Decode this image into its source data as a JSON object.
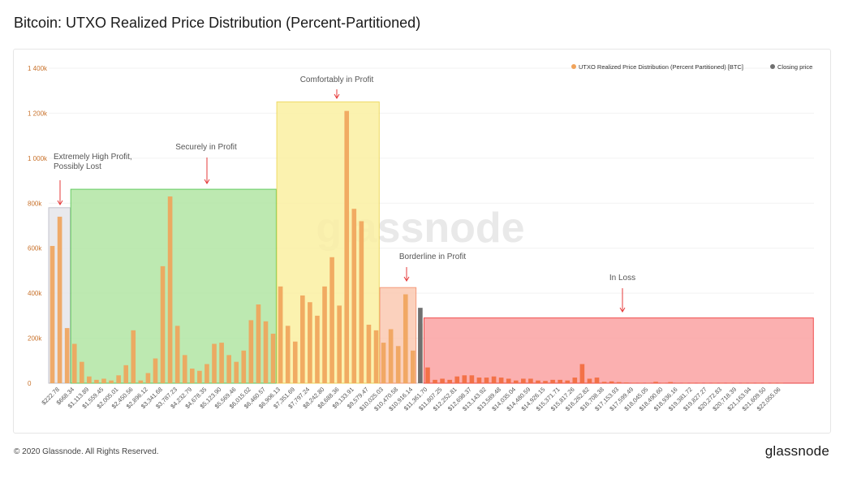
{
  "title": "Bitcoin: UTXO Realized Price Distribution (Percent-Partitioned)",
  "footer": {
    "copyright": "© 2020 Glassnode. All Rights Reserved.",
    "brand": "glassnode"
  },
  "watermark": "glassnode",
  "legend": [
    {
      "label": "UTXO Realized Price Distribution (Percent Partitioned) [BTC]",
      "color": "#f0a35a"
    },
    {
      "label": "Closing price",
      "color": "#707070"
    }
  ],
  "colors": {
    "bar": "#f0a35a",
    "bar_loss": "#f26a3c",
    "closing": "#707070"
  },
  "zones": [
    {
      "id": "extreme",
      "label_lines": [
        "Extremely High Profit,",
        "Possibly Lost"
      ],
      "fill": "#e6e6ea",
      "stroke": "#b9b9c4"
    },
    {
      "id": "secure",
      "label_lines": [
        "Securely in Profit"
      ],
      "fill": "#b2e6a4",
      "stroke": "#4cc24a"
    },
    {
      "id": "comfort",
      "label_lines": [
        "Comfortably in Profit"
      ],
      "fill": "#fbf0a2",
      "stroke": "#ecd44a"
    },
    {
      "id": "border",
      "label_lines": [
        "Borderline in Profit"
      ],
      "fill": "#fbc9b2",
      "stroke": "#f28a66"
    },
    {
      "id": "loss",
      "label_lines": [
        "In Loss"
      ],
      "fill": "#fba3a3",
      "stroke": "#ee2c2c"
    }
  ],
  "chart_data": {
    "type": "bar",
    "title": "",
    "xlabel": "",
    "ylabel": "",
    "ylim": [
      0,
      1400000
    ],
    "yticks": [
      0,
      200000,
      400000,
      600000,
      800000,
      1000000,
      1200000,
      1400000
    ],
    "ytick_labels": [
      "0",
      "200k",
      "400k",
      "600k",
      "800k",
      "1 000k",
      "1 200k",
      "1 400k"
    ],
    "x_tick_labels": [
      "$222.78",
      "$668.34",
      "$1,113.89",
      "$1,559.45",
      "$2,005.01",
      "$2,450.56",
      "$2,896.12",
      "$3,341.68",
      "$3,787.23",
      "$4,232.79",
      "$4,678.35",
      "$5,123.90",
      "$5,569.46",
      "$6,015.02",
      "$6,460.57",
      "$6,906.13",
      "$7,351.69",
      "$7,797.24",
      "$8,242.80",
      "$8,688.36",
      "$9,133.91",
      "$9,579.47",
      "$10,025.03",
      "$10,470.58",
      "$10,916.14",
      "$11,361.70",
      "$11,807.25",
      "$12,252.81",
      "$12,698.37",
      "$13,143.92",
      "$13,589.48",
      "$14,035.04",
      "$14,480.59",
      "$14,926.15",
      "$15,371.71",
      "$15,817.26",
      "$16,262.82",
      "$16,708.38",
      "$17,153.93",
      "$17,599.49",
      "$18,045.05",
      "$18,490.60",
      "$18,936.16",
      "$19,381.72",
      "$19,827.27",
      "$20,272.83",
      "$20,718.39",
      "$21,163.94",
      "$21,609.50",
      "$22,055.06"
    ],
    "closing_price_label": "$11,361.70",
    "series": [
      {
        "name": "UTXO Realized Price Distribution (Percent Partitioned) [BTC]",
        "values": [
          610000,
          740000,
          245000,
          175000,
          95000,
          30000,
          15000,
          20000,
          12000,
          35000,
          80000,
          235000,
          12000,
          45000,
          110000,
          520000,
          830000,
          255000,
          125000,
          65000,
          55000,
          85000,
          175000,
          180000,
          125000,
          95000,
          145000,
          280000,
          350000,
          275000,
          220000,
          430000,
          255000,
          185000,
          390000,
          360000,
          300000,
          430000,
          560000,
          345000,
          1210000,
          775000,
          720000,
          260000,
          235000,
          180000,
          240000,
          165000,
          395000,
          145000,
          265000,
          70000,
          15000,
          20000,
          15000,
          30000,
          35000,
          35000,
          25000,
          25000,
          30000,
          25000,
          20000,
          12000,
          20000,
          20000,
          12000,
          10000,
          15000,
          15000,
          12000,
          25000,
          85000,
          20000,
          25000,
          6000,
          8000,
          5000,
          3000,
          2000,
          2000,
          1000,
          6000,
          1000,
          5000,
          2000,
          1000,
          1000,
          1000,
          1000,
          1000,
          1000,
          1000,
          1000,
          1000,
          1000,
          1000,
          1000,
          1000,
          1000
        ]
      },
      {
        "name": "Closing price",
        "values": [
          335000
        ]
      }
    ]
  }
}
